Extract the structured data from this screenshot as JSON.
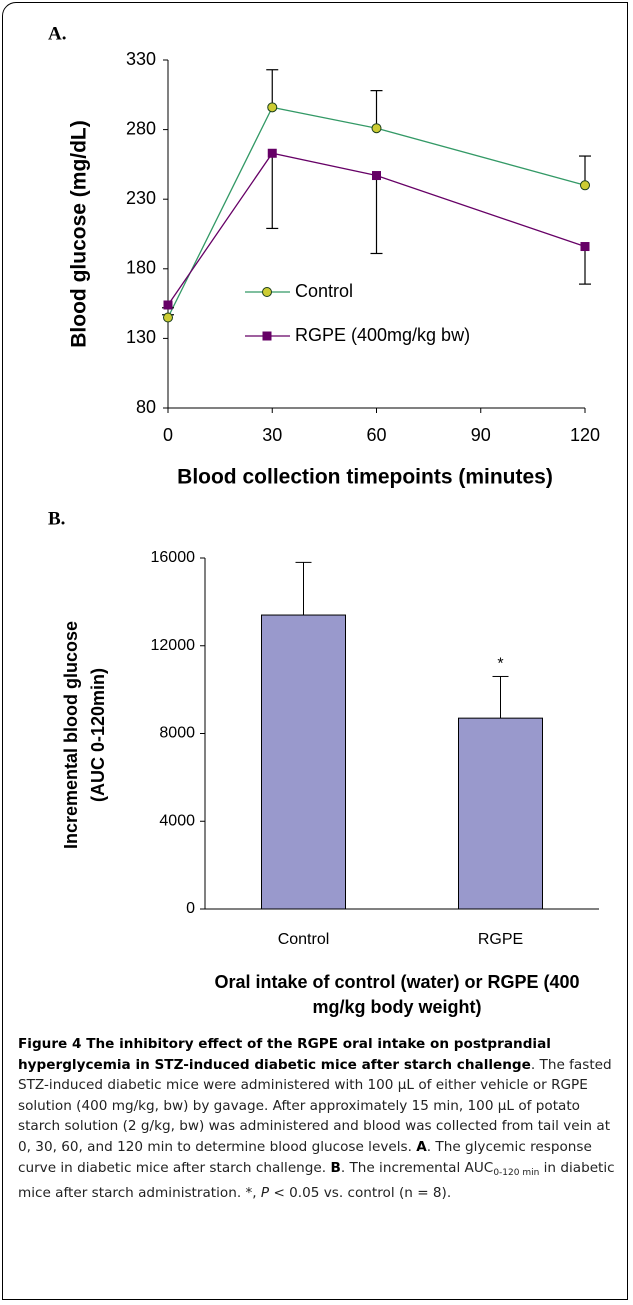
{
  "chart_data": [
    {
      "type": "line",
      "panel_label": "A.",
      "xlabel": "Blood collection timepoints (minutes)",
      "ylabel": "Blood glucose (mg/dL)",
      "x": [
        0,
        30,
        60,
        120
      ],
      "xlim": [
        0,
        120
      ],
      "xticks": [
        0,
        30,
        60,
        90,
        120
      ],
      "ylim": [
        80,
        330
      ],
      "yticks": [
        80,
        130,
        180,
        230,
        280,
        330
      ],
      "grid": false,
      "legend": "center",
      "series": [
        {
          "name": "Control",
          "color": "#339966",
          "marker": "circle",
          "marker_color": "#cccc33",
          "values": [
            145,
            296,
            281,
            240
          ],
          "errors": [
            2,
            27,
            27,
            21
          ],
          "error_side": "upper"
        },
        {
          "name": "RGPE (400mg/kg bw)",
          "color": "#660066",
          "marker": "square",
          "marker_color": "#660066",
          "values": [
            154,
            263,
            247,
            196
          ],
          "errors": [
            2,
            54,
            56,
            27
          ],
          "error_side": "lower"
        }
      ]
    },
    {
      "type": "bar",
      "panel_label": "B.",
      "xlabel": [
        "Oral intake of control (water) or RGPE (400",
        "mg/kg body weight)"
      ],
      "ylabel": [
        "Incremental blood glucose",
        "(AUC 0-120min)"
      ],
      "categories": [
        "Control",
        "RGPE"
      ],
      "values": [
        13400,
        8700
      ],
      "errors": [
        2400,
        1900
      ],
      "color": "#9999cc",
      "annotations": [
        "*"
      ],
      "ylim": [
        0,
        16000
      ],
      "yticks": [
        0,
        4000,
        8000,
        12000,
        16000
      ],
      "grid": false
    }
  ],
  "caption": [
    {
      "text": "Figure 4 The inhibitory effect of the RGPE oral intake on postprandial hyperglycemia in STZ-induced diabetic mice after starch challenge",
      "style": "bold"
    },
    {
      "text": ". The fasted STZ-induced diabetic mice were administered with 100 µL of either vehicle or RGPE solution (400 mg/kg, bw) by gavage. After approximately 15 min, 100 µL of potato starch solution (2 g/kg, bw) was administered and blood was collected from tail vein at 0, 30, 60, and 120 min to determine blood glucose levels. ",
      "style": "normal"
    },
    {
      "text": "A",
      "style": "bold"
    },
    {
      "text": ". The glycemic response curve in diabetic mice after starch challenge. ",
      "style": "normal"
    },
    {
      "text": "B",
      "style": "bold"
    },
    {
      "text": ". The incremental AUC",
      "style": "normal"
    },
    {
      "text": "0-120 min",
      "style": "sub"
    },
    {
      "text": " in diabetic mice after starch administration. *, ",
      "style": "normal"
    },
    {
      "text": "P",
      "style": "italic"
    },
    {
      "text": " < 0.05 vs. control (n = 8).",
      "style": "normal"
    }
  ]
}
